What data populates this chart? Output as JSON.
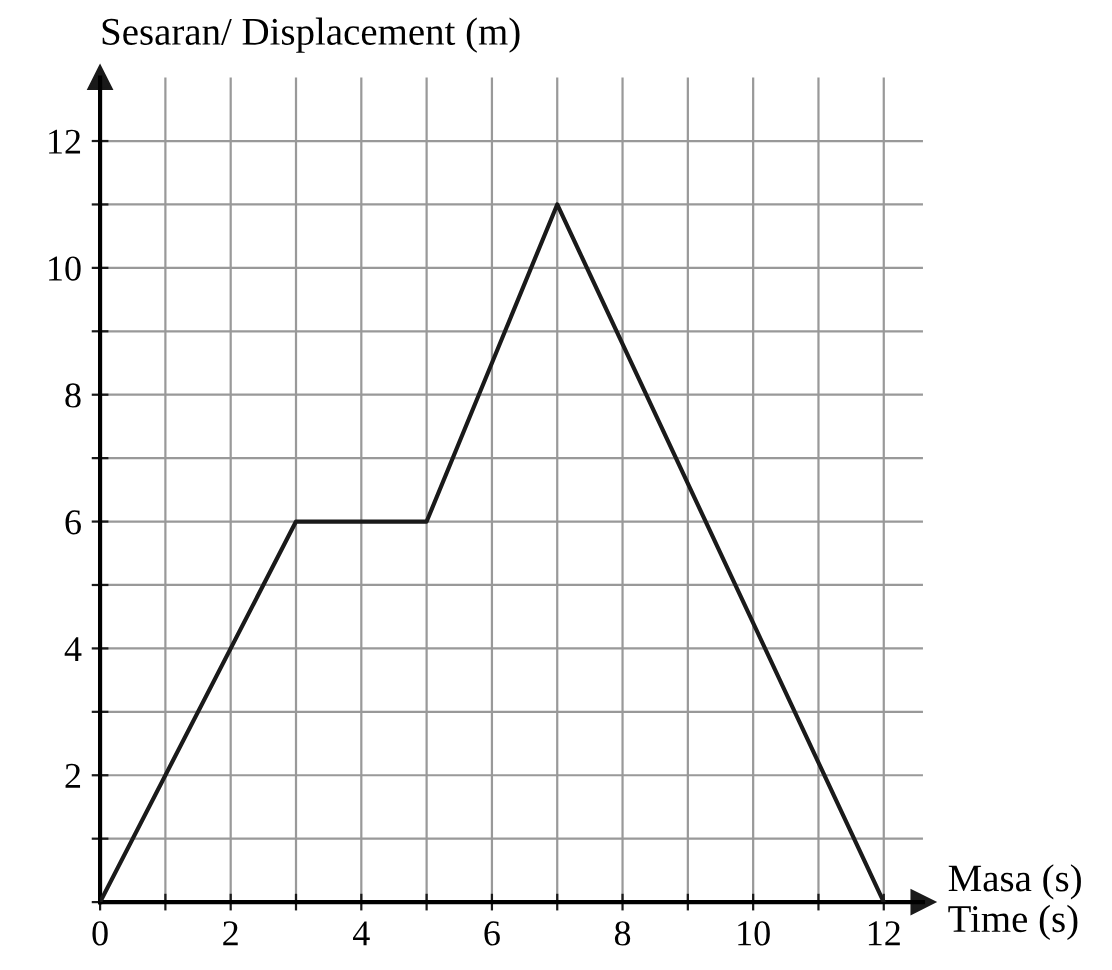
{
  "chart_data": {
    "type": "line",
    "x": [
      0,
      3,
      5,
      7,
      12
    ],
    "values": [
      0,
      6,
      6,
      11,
      0
    ],
    "color": "#1a1a1a",
    "xlabel": "Masa (s)\nTime (s)",
    "ylabel": "Sesaran/ Displacement (m)",
    "xlim": [
      0,
      12.6
    ],
    "ylim": [
      0,
      13
    ],
    "xticks": [
      {
        "value": 0,
        "label": "0"
      },
      {
        "value": 1,
        "label": null
      },
      2,
      {
        "value": 3,
        "label": null
      },
      4,
      {
        "value": 5,
        "label": null
      },
      6,
      {
        "value": 7,
        "label": null
      },
      8,
      {
        "value": 9,
        "label": null
      },
      10,
      {
        "value": 11,
        "label": null
      },
      12
    ],
    "yticks": [
      {
        "value": 0,
        "label": null
      },
      {
        "value": 1,
        "label": null
      },
      2,
      {
        "value": 3,
        "label": null
      },
      4,
      {
        "value": 5,
        "label": null
      },
      6,
      {
        "value": 7,
        "label": null
      },
      8,
      {
        "value": 9,
        "label": null
      },
      10,
      {
        "value": 11,
        "label": null
      },
      12
    ],
    "grid": true,
    "marker": "none",
    "line_style": "solid",
    "legend": false
  }
}
